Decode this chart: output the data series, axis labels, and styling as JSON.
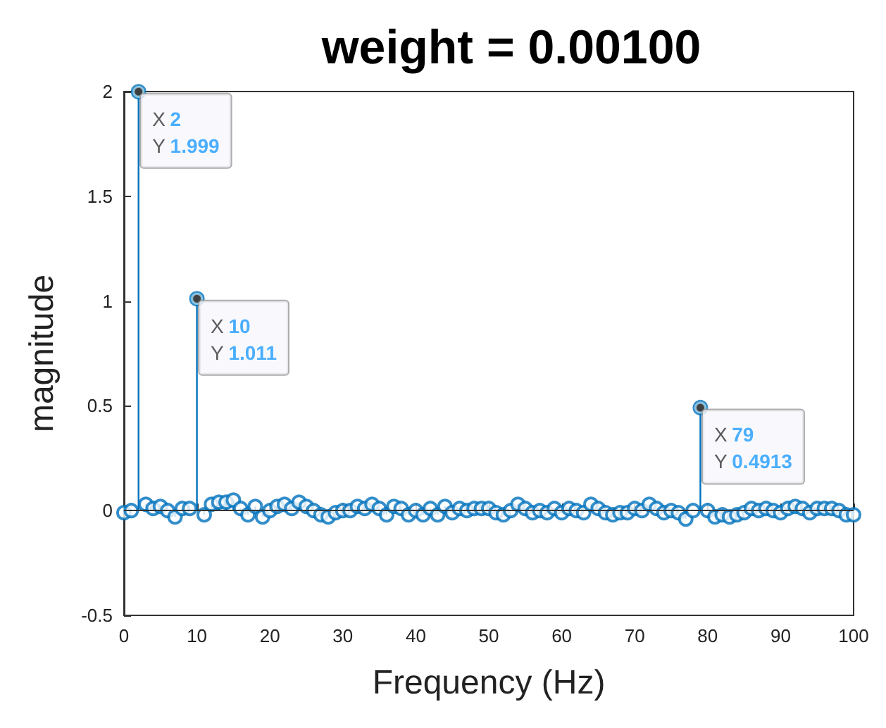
{
  "chart_data": {
    "type": "lollipop",
    "title": "weight = 0.00100",
    "xlabel": "Frequency (Hz)",
    "ylabel": "magnitude",
    "marker": "circle",
    "grid": false,
    "xlim": [
      0,
      100
    ],
    "xticks": [
      0,
      10,
      20,
      30,
      40,
      50,
      60,
      70,
      80,
      90,
      100
    ],
    "ylim": [
      -0.5,
      2
    ],
    "yticks": [
      -0.5,
      0,
      0.5,
      1,
      1.5,
      2
    ],
    "ref_lines": [
      {
        "axis": "y",
        "value": 0,
        "color": "#333333"
      }
    ],
    "annotations": [
      {
        "text": "X 2\nY 1.999",
        "x": 2,
        "y": 1.999
      },
      {
        "text": "X 10\nY 1.011",
        "x": 10,
        "y": 1.011
      },
      {
        "text": "X 79\nY 0.4913",
        "x": 79,
        "y": 0.4913
      }
    ],
    "series": [
      {
        "color": "#0072bd",
        "x": [
          0,
          1,
          2,
          3,
          4,
          5,
          6,
          7,
          8,
          9,
          10,
          11,
          12,
          13,
          14,
          15,
          16,
          17,
          18,
          19,
          20,
          21,
          22,
          23,
          24,
          25,
          26,
          27,
          28,
          29,
          30,
          31,
          32,
          33,
          34,
          35,
          36,
          37,
          38,
          39,
          40,
          41,
          42,
          43,
          44,
          45,
          46,
          47,
          48,
          49,
          50,
          51,
          52,
          53,
          54,
          55,
          56,
          57,
          58,
          59,
          60,
          61,
          62,
          63,
          64,
          65,
          66,
          67,
          68,
          69,
          70,
          71,
          72,
          73,
          74,
          75,
          76,
          77,
          78,
          79,
          80,
          81,
          82,
          83,
          84,
          85,
          86,
          87,
          88,
          89,
          90,
          91,
          92,
          93,
          94,
          95,
          96,
          97,
          98,
          99,
          100
        ],
        "values": [
          -0.01,
          0.0,
          1.999,
          0.03,
          0.01,
          0.02,
          0.0,
          -0.03,
          0.01,
          0.01,
          1.011,
          -0.02,
          0.03,
          0.04,
          0.04,
          0.05,
          0.01,
          -0.02,
          0.02,
          -0.03,
          0.0,
          0.02,
          0.03,
          0.01,
          0.04,
          0.02,
          0.0,
          -0.02,
          -0.03,
          -0.01,
          0.0,
          0.0,
          0.02,
          0.01,
          0.03,
          0.01,
          -0.02,
          0.02,
          0.01,
          -0.02,
          0.0,
          -0.02,
          0.01,
          -0.02,
          0.02,
          -0.01,
          0.01,
          0.0,
          0.01,
          0.01,
          0.01,
          -0.01,
          -0.02,
          0.0,
          0.03,
          0.01,
          -0.01,
          0.0,
          -0.01,
          0.01,
          -0.01,
          0.01,
          0.0,
          -0.01,
          0.03,
          0.01,
          -0.01,
          -0.02,
          -0.01,
          -0.01,
          0.01,
          0.0,
          0.03,
          0.01,
          -0.01,
          0.0,
          -0.01,
          -0.04,
          0.0,
          0.4913,
          0.0,
          -0.03,
          -0.02,
          -0.03,
          -0.02,
          -0.01,
          0.01,
          0.0,
          0.01,
          0.0,
          -0.01,
          0.01,
          0.02,
          0.01,
          -0.01,
          0.01,
          0.01,
          0.01,
          0.0,
          -0.02,
          -0.02
        ]
      }
    ]
  }
}
